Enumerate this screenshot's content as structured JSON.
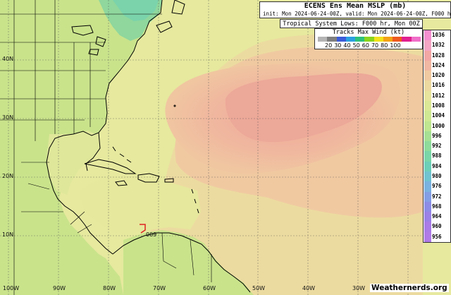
{
  "header": {
    "title": "ECENS Ens Mean MSLP (mb)",
    "init_line": "init: Mon 2024-06-24-00Z, valid: Mon 2024-06-24-00Z, F000 hr"
  },
  "tropical_systems": {
    "label": "Tropical System Lows: F000 hr, Mon 00Z"
  },
  "wind_legend": {
    "title": "Tracks Max Wind (kt)",
    "labels": [
      "20",
      "30",
      "40",
      "50",
      "60",
      "70",
      "80",
      "100"
    ],
    "colors": [
      "#b4b4b4",
      "#7f7f7f",
      "#3b5bd9",
      "#2aa0e0",
      "#2ec07a",
      "#8ad31c",
      "#f2e11b",
      "#f3a216",
      "#ee5a1f",
      "#e0208f",
      "#f06ec8"
    ]
  },
  "pressure_scale": {
    "levels": [
      "1036",
      "1032",
      "1028",
      "1024",
      "1020",
      "1016",
      "1012",
      "1008",
      "1004",
      "1000",
      "996",
      "992",
      "988",
      "984",
      "980",
      "976",
      "972",
      "968",
      "964",
      "960",
      "956"
    ],
    "colors": [
      "#f48fd0",
      "#f4a6c4",
      "#f2a7a5",
      "#f1b7a2",
      "#f0c9a1",
      "#ecd9a0",
      "#e7e49d",
      "#dbe896",
      "#cfe993",
      "#bfe690",
      "#a6e094",
      "#8edb9c",
      "#7ad6a8",
      "#6dcfb8",
      "#70c3d0",
      "#7ab2e0",
      "#849ee6",
      "#8c8ce6",
      "#9a82e6",
      "#a97ce6",
      "#b07be6"
    ]
  },
  "map": {
    "lat_labels": [
      "40N",
      "30N",
      "20N",
      "10N"
    ],
    "lon_labels": [
      "100W",
      "90W",
      "80W",
      "70W",
      "60W",
      "50W",
      "40W",
      "30W"
    ],
    "system_label": "009",
    "land_color": "#c8e48c",
    "ocean_color": "#e5e99d",
    "high_color": "#f0b29a"
  },
  "footer": {
    "credit": "Weathernerds.org"
  }
}
